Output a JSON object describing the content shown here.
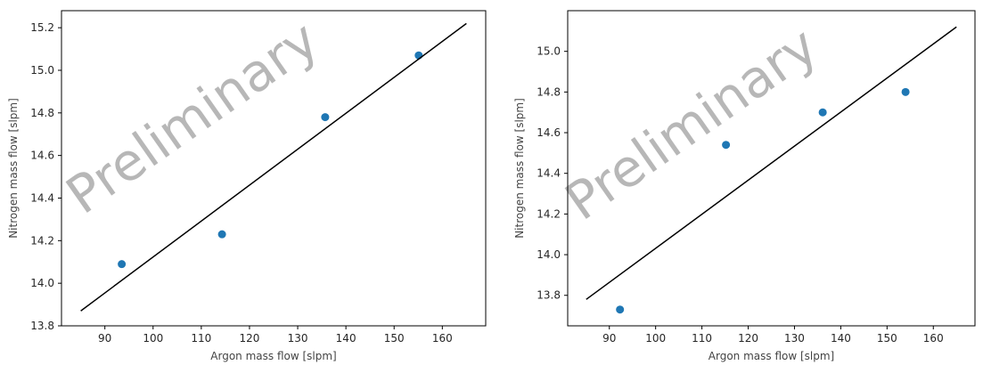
{
  "chart_data": [
    {
      "type": "scatter",
      "xlabel": "Argon mass flow [slpm]",
      "ylabel": "Nitrogen mass flow [slpm]",
      "xlim": [
        81.0,
        169.0
      ],
      "ylim": [
        13.8,
        15.28
      ],
      "xticks": [
        90,
        100,
        110,
        120,
        130,
        140,
        150,
        160
      ],
      "yticks": [
        13.8,
        14.0,
        14.2,
        14.4,
        14.6,
        14.8,
        15.0,
        15.2
      ],
      "ytick_labels": [
        "13.8",
        "14.0",
        "14.2",
        "14.4",
        "14.6",
        "14.8",
        "15.0",
        "15.2"
      ],
      "grid": false,
      "watermark": "Preliminary",
      "series": [
        {
          "kind": "points",
          "color": "#1f77b4",
          "points": [
            {
              "x": 93.5,
              "y": 14.09
            },
            {
              "x": 114.3,
              "y": 14.23
            },
            {
              "x": 135.7,
              "y": 14.78
            },
            {
              "x": 155.1,
              "y": 15.07
            }
          ]
        },
        {
          "kind": "line",
          "color": "#000000",
          "points": [
            {
              "x": 85.0,
              "y": 13.87
            },
            {
              "x": 165.0,
              "y": 15.22
            }
          ]
        }
      ]
    },
    {
      "type": "scatter",
      "xlabel": "Argon mass flow [slpm]",
      "ylabel": "Nitrogen mass flow [slpm]",
      "xlim": [
        81.0,
        169.0
      ],
      "ylim": [
        13.65,
        15.2
      ],
      "xticks": [
        90,
        100,
        110,
        120,
        130,
        140,
        150,
        160
      ],
      "yticks": [
        13.8,
        14.0,
        14.2,
        14.4,
        14.6,
        14.8,
        15.0
      ],
      "ytick_labels": [
        "13.8",
        "14.0",
        "14.2",
        "14.4",
        "14.6",
        "14.8",
        "15.0"
      ],
      "grid": false,
      "watermark": "Preliminary",
      "series": [
        {
          "kind": "points",
          "color": "#1f77b4",
          "points": [
            {
              "x": 92.3,
              "y": 13.73
            },
            {
              "x": 115.2,
              "y": 14.54
            },
            {
              "x": 136.1,
              "y": 14.7
            },
            {
              "x": 154.0,
              "y": 14.8
            }
          ]
        },
        {
          "kind": "line",
          "color": "#000000",
          "points": [
            {
              "x": 85.0,
              "y": 13.78
            },
            {
              "x": 165.0,
              "y": 15.12
            }
          ]
        }
      ]
    }
  ]
}
